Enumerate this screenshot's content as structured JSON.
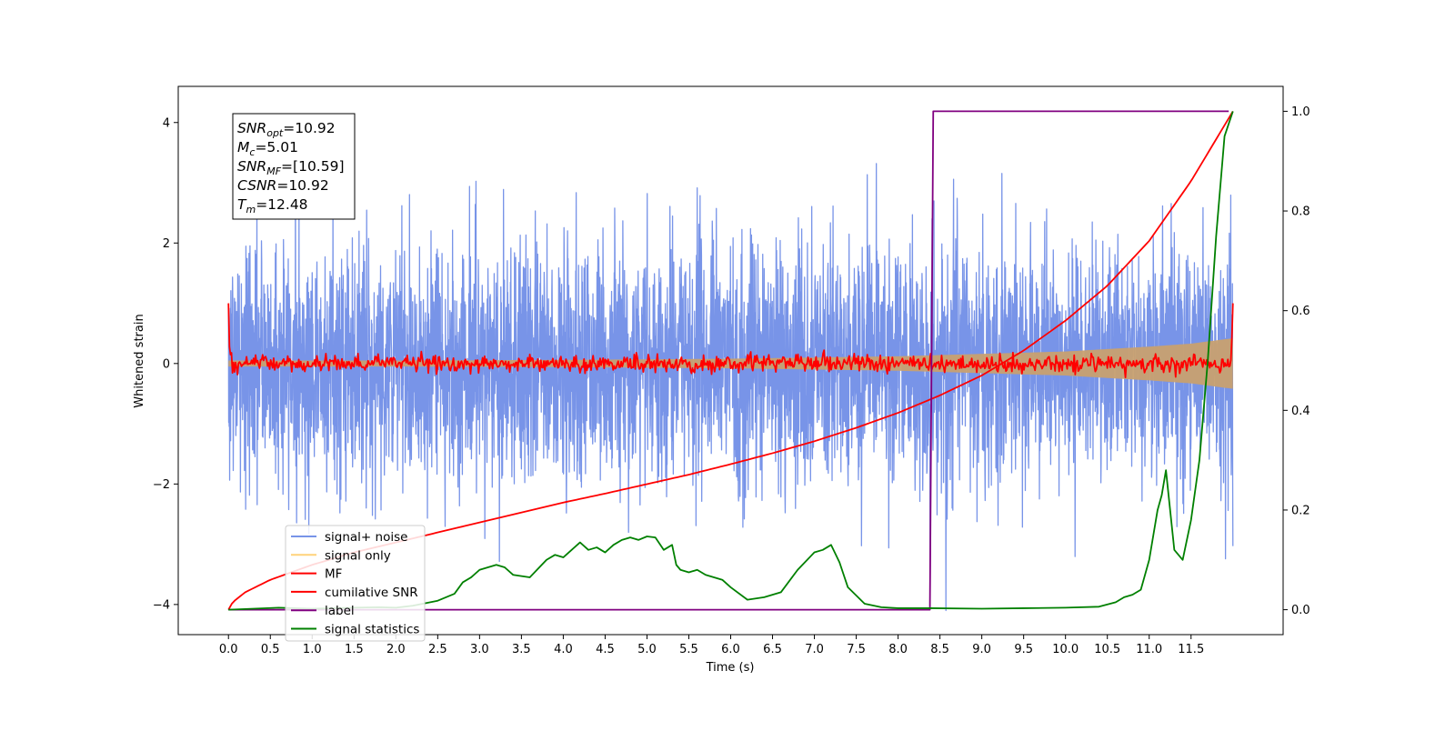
{
  "chart_data": {
    "type": "line",
    "xlabel": "Time (s)",
    "ylabel": "Whitened strain",
    "xlim": [
      -0.6,
      12.6
    ],
    "ylim": [
      -4.5,
      4.6
    ],
    "y2lim": [
      -0.05,
      1.05
    ],
    "x_ticks": [
      0.0,
      0.5,
      1.0,
      1.5,
      2.0,
      2.5,
      3.0,
      3.5,
      4.0,
      4.5,
      5.0,
      5.5,
      6.0,
      6.5,
      7.0,
      7.5,
      8.0,
      8.5,
      9.0,
      9.5,
      10.0,
      10.5,
      11.0,
      11.5
    ],
    "x_tick_labels": [
      "0.0",
      "0.5",
      "1.0",
      "1.5",
      "2.0",
      "2.5",
      "3.0",
      "3.5",
      "4.0",
      "4.5",
      "5.0",
      "5.5",
      "6.0",
      "6.5",
      "7.0",
      "7.5",
      "8.0",
      "8.5",
      "9.0",
      "9.5",
      "10.0",
      "10.5",
      "11.0",
      "11.5"
    ],
    "y_ticks": [
      -4,
      -2,
      0,
      2,
      4
    ],
    "y_tick_labels": [
      "−4",
      "−2",
      "0",
      "2",
      "4"
    ],
    "y2_ticks": [
      0.0,
      0.2,
      0.4,
      0.6,
      0.8,
      1.0
    ],
    "y2_tick_labels": [
      "0.0",
      "0.2",
      "0.4",
      "0.6",
      "0.8",
      "1.0"
    ],
    "grid": false,
    "legend_position": "bottom-left",
    "legend": [
      {
        "label": "signal+ noise",
        "color": "#7894e8"
      },
      {
        "label": "signal only",
        "color": "#ffd27a"
      },
      {
        "label": "MF",
        "color": "#ff0000"
      },
      {
        "label": "cumilative SNR",
        "color": "#ff0000"
      },
      {
        "label": "label",
        "color": "#800080"
      },
      {
        "label": "signal statistics",
        "color": "#008000"
      }
    ],
    "info_box": [
      {
        "main": "SNR",
        "sub": "opt",
        "rest": "=10.92"
      },
      {
        "main": "M",
        "sub": "c",
        "rest": "=5.01"
      },
      {
        "main": "SNR",
        "sub": "MF",
        "rest": "=[10.59]"
      },
      {
        "main": "CSNR",
        "sub": "",
        "rest": "=10.92"
      },
      {
        "main": "T",
        "sub": "m",
        "rest": "=12.48"
      }
    ],
    "series": [
      {
        "name": "signal+ noise",
        "axis": "left",
        "style": "noise",
        "color": "#7894e8",
        "x_range": [
          0.0,
          12.0
        ],
        "approx_std": 1.0,
        "approx_max": 4.15,
        "approx_min": -4.1
      },
      {
        "name": "signal only",
        "axis": "left",
        "style": "chirp_band",
        "color": "#c8a070",
        "x_range": [
          0.0,
          12.0
        ],
        "envelope": {
          "x": [
            0,
            2,
            4,
            6,
            7,
            8,
            8.5,
            9,
            9.5,
            10,
            10.5,
            11,
            11.5,
            12
          ],
          "amp": [
            0.05,
            0.05,
            0.06,
            0.08,
            0.1,
            0.12,
            0.14,
            0.16,
            0.18,
            0.2,
            0.24,
            0.28,
            0.33,
            0.42
          ]
        }
      },
      {
        "name": "MF",
        "axis": "left",
        "style": "mf",
        "color": "#ff0000",
        "x_range": [
          0.0,
          12.0
        ],
        "start_value": 1.0,
        "end_value": 1.0,
        "noise_std": 0.07
      },
      {
        "name": "cumilative SNR",
        "axis": "right",
        "color": "#ff0000",
        "x": [
          0,
          0.05,
          0.2,
          0.5,
          1.0,
          1.5,
          2.0,
          2.5,
          3.0,
          3.5,
          4.0,
          4.5,
          5.0,
          5.5,
          6.0,
          6.5,
          7.0,
          7.5,
          8.0,
          8.5,
          9.0,
          9.5,
          10.0,
          10.5,
          11.0,
          11.5,
          12.0
        ],
        "y": [
          0.0,
          0.015,
          0.035,
          0.06,
          0.09,
          0.115,
          0.135,
          0.155,
          0.175,
          0.195,
          0.215,
          0.233,
          0.252,
          0.271,
          0.292,
          0.314,
          0.338,
          0.365,
          0.395,
          0.43,
          0.47,
          0.52,
          0.58,
          0.65,
          0.74,
          0.86,
          1.0
        ]
      },
      {
        "name": "label",
        "axis": "right",
        "color": "#800080",
        "x": [
          0,
          8.38,
          8.42,
          11.95
        ],
        "y": [
          0,
          0,
          1,
          1
        ]
      },
      {
        "name": "signal statistics",
        "axis": "right",
        "color": "#008000",
        "x": [
          0,
          0.3,
          0.6,
          1.0,
          1.5,
          1.8,
          2.0,
          2.2,
          2.5,
          2.7,
          2.8,
          2.9,
          3.0,
          3.1,
          3.2,
          3.3,
          3.4,
          3.6,
          3.8,
          3.9,
          4.0,
          4.1,
          4.2,
          4.3,
          4.4,
          4.5,
          4.6,
          4.7,
          4.8,
          4.9,
          5.0,
          5.1,
          5.2,
          5.3,
          5.35,
          5.4,
          5.5,
          5.6,
          5.7,
          5.8,
          5.9,
          6.0,
          6.2,
          6.4,
          6.5,
          6.6,
          6.8,
          7.0,
          7.1,
          7.2,
          7.3,
          7.4,
          7.6,
          7.8,
          8.0,
          8.4,
          9.0,
          9.5,
          10.0,
          10.4,
          10.6,
          10.7,
          10.8,
          10.9,
          11.0,
          11.05,
          11.1,
          11.15,
          11.2,
          11.3,
          11.4,
          11.5,
          11.6,
          11.7,
          11.8,
          11.9,
          12.0
        ],
        "y": [
          0.0,
          0.002,
          0.004,
          0.002,
          0.004,
          0.005,
          0.004,
          0.008,
          0.018,
          0.032,
          0.055,
          0.065,
          0.08,
          0.085,
          0.09,
          0.085,
          0.07,
          0.065,
          0.1,
          0.11,
          0.105,
          0.12,
          0.135,
          0.12,
          0.125,
          0.115,
          0.13,
          0.14,
          0.145,
          0.14,
          0.147,
          0.145,
          0.12,
          0.13,
          0.09,
          0.08,
          0.075,
          0.08,
          0.07,
          0.065,
          0.06,
          0.045,
          0.02,
          0.025,
          0.03,
          0.035,
          0.08,
          0.115,
          0.12,
          0.13,
          0.095,
          0.045,
          0.012,
          0.005,
          0.003,
          0.003,
          0.002,
          0.003,
          0.004,
          0.006,
          0.015,
          0.025,
          0.03,
          0.04,
          0.1,
          0.15,
          0.2,
          0.23,
          0.28,
          0.12,
          0.1,
          0.18,
          0.3,
          0.5,
          0.75,
          0.95,
          1.0
        ]
      }
    ]
  }
}
